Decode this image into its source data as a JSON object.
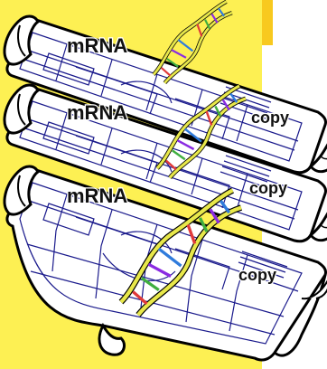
{
  "sheets": [
    {
      "mrna_label": "mRNA",
      "copy_label": "copy"
    },
    {
      "mrna_label": "mRNA",
      "copy_label": "copy"
    },
    {
      "mrna_label": "mRNA",
      "copy_label": "copy"
    }
  ],
  "colors": {
    "background_yellow": "#fdf053",
    "accent_orange": "#f8c91f",
    "blueprint_line": "#1a1a8c",
    "dna_backbone": "#e8e84a",
    "dna_bases": [
      "#e03a3a",
      "#3fae3f",
      "#8a2be2",
      "#2f7bdc"
    ]
  }
}
